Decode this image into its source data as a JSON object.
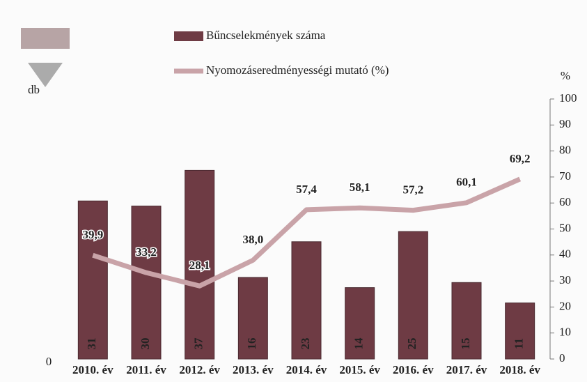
{
  "chart_data": {
    "type": "combo",
    "categories": [
      "2010. év",
      "2011. év",
      "2012. év",
      "2013. év",
      "2014. év",
      "2015. év",
      "2016. év",
      "2017. év",
      "2018. év"
    ],
    "y_label": "db",
    "y2_label": "%",
    "ylim": [
      0,
      51
    ],
    "yticks": [
      0
    ],
    "y2lim": [
      0,
      100
    ],
    "y2ticks": [
      0,
      10,
      20,
      30,
      40,
      50,
      60,
      70,
      80,
      90,
      100
    ],
    "legend": "top",
    "series": [
      {
        "name": "Bűncselekmények száma",
        "type": "bar",
        "color": "#6e3b44",
        "values": [
          31,
          30,
          37,
          16,
          23,
          14,
          25,
          15,
          11
        ]
      },
      {
        "name": "Nyomozáseredményességi mutató (%)",
        "type": "line",
        "axis": "y2",
        "color": "#c9a3a8",
        "values": [
          39.9,
          33.2,
          28.1,
          38.0,
          57.4,
          58.1,
          57.2,
          60.1,
          69.2
        ],
        "value_labels": [
          "39,9",
          "33,2",
          "28,1",
          "38,0",
          "57,4",
          "58,1",
          "57,2",
          "60,1",
          "69,2"
        ]
      }
    ]
  }
}
